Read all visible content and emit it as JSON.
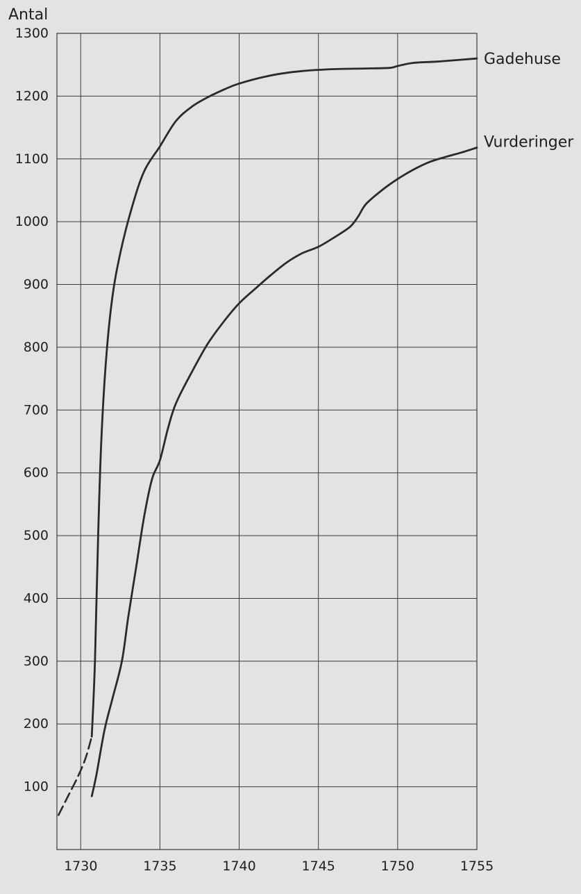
{
  "chart_data": {
    "type": "line",
    "ylabel": "Antal",
    "xlabel": "",
    "xlim": [
      1728.5,
      1755
    ],
    "ylim": [
      0,
      1300
    ],
    "x_ticks": [
      1730,
      1735,
      1740,
      1745,
      1750,
      1755
    ],
    "y_ticks": [
      100,
      200,
      300,
      400,
      500,
      600,
      700,
      800,
      900,
      1000,
      1100,
      1200,
      1300
    ],
    "grid": true,
    "colors": {
      "background": "#e3e3e3",
      "line": "#2a2a2a",
      "grid": "#3a3a3a"
    },
    "series": [
      {
        "name": "Gadehuse",
        "dashed_segment": [
          [
            1728.6,
            55
          ],
          [
            1729.2,
            85
          ],
          [
            1729.8,
            115
          ],
          [
            1730.3,
            145
          ],
          [
            1730.7,
            180
          ]
        ],
        "points": [
          [
            1730.7,
            180
          ],
          [
            1730.9,
            300
          ],
          [
            1731.1,
            500
          ],
          [
            1731.3,
            650
          ],
          [
            1731.6,
            780
          ],
          [
            1732.0,
            880
          ],
          [
            1732.5,
            950
          ],
          [
            1733.2,
            1020
          ],
          [
            1734.0,
            1080
          ],
          [
            1735.0,
            1120
          ],
          [
            1736.0,
            1160
          ],
          [
            1737.0,
            1183
          ],
          [
            1738.0,
            1198
          ],
          [
            1739.0,
            1210
          ],
          [
            1740.0,
            1220
          ],
          [
            1742.0,
            1233
          ],
          [
            1744.0,
            1240
          ],
          [
            1746.0,
            1243
          ],
          [
            1748.0,
            1244
          ],
          [
            1749.5,
            1245
          ],
          [
            1750.0,
            1248
          ],
          [
            1751.0,
            1253
          ],
          [
            1752.5,
            1255
          ],
          [
            1754.0,
            1258
          ],
          [
            1755.0,
            1260
          ]
        ]
      },
      {
        "name": "Vurderinger",
        "points": [
          [
            1730.7,
            85
          ],
          [
            1731.0,
            120
          ],
          [
            1731.5,
            190
          ],
          [
            1732.0,
            240
          ],
          [
            1732.6,
            300
          ],
          [
            1733.0,
            370
          ],
          [
            1733.5,
            450
          ],
          [
            1734.0,
            530
          ],
          [
            1734.5,
            590
          ],
          [
            1735.0,
            620
          ],
          [
            1735.5,
            670
          ],
          [
            1736.0,
            710
          ],
          [
            1737.0,
            760
          ],
          [
            1738.0,
            805
          ],
          [
            1739.0,
            840
          ],
          [
            1740.0,
            870
          ],
          [
            1741.0,
            893
          ],
          [
            1742.0,
            915
          ],
          [
            1743.0,
            935
          ],
          [
            1744.0,
            950
          ],
          [
            1745.0,
            960
          ],
          [
            1746.0,
            975
          ],
          [
            1747.0,
            992
          ],
          [
            1747.5,
            1008
          ],
          [
            1748.0,
            1028
          ],
          [
            1749.0,
            1050
          ],
          [
            1750.0,
            1068
          ],
          [
            1751.0,
            1083
          ],
          [
            1752.0,
            1095
          ],
          [
            1753.0,
            1103
          ],
          [
            1754.0,
            1110
          ],
          [
            1755.0,
            1118
          ]
        ]
      }
    ]
  }
}
